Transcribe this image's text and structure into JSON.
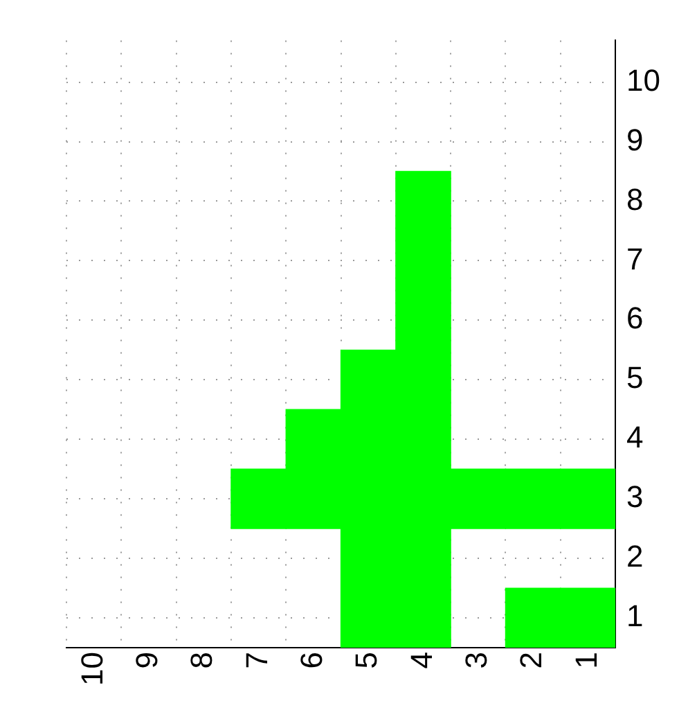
{
  "chart_data": {
    "type": "bar",
    "categories": [
      "10",
      "9",
      "8",
      "7",
      "6",
      "5",
      "4",
      "3",
      "2",
      "1"
    ],
    "series": [
      {
        "color": "#00ff00",
        "base": [
          null,
          null,
          null,
          2.5,
          2.5,
          0.5,
          0.5,
          2.5,
          0.5,
          0.5
        ],
        "values": [
          null,
          null,
          null,
          1,
          2,
          5,
          8,
          1,
          1,
          1
        ]
      },
      {
        "color": "#00ff00",
        "base": [
          null,
          null,
          null,
          null,
          null,
          null,
          null,
          null,
          2.5,
          2.5
        ],
        "values": [
          null,
          null,
          null,
          null,
          null,
          null,
          null,
          null,
          1,
          1
        ]
      }
    ],
    "ylim": [
      0.5,
      10.7
    ],
    "yticks": [
      1,
      2,
      3,
      4,
      5,
      6,
      7,
      8,
      9,
      10
    ],
    "grid": true,
    "legend": false
  }
}
